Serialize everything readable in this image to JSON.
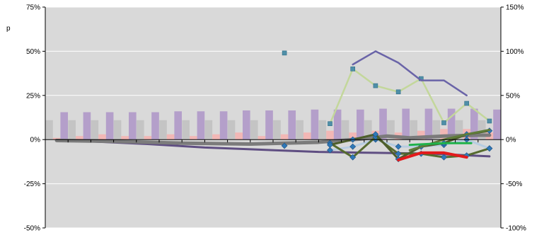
{
  "chart_data": {
    "type": "bar",
    "title": "",
    "xlabel": "",
    "ylabel": "",
    "side_label": "p",
    "grid": true,
    "legend": "none",
    "colors": {
      "plot_bg": "#d9d9d9",
      "grid": "#ffffff",
      "axis": "#000000"
    },
    "y_left": {
      "range": [
        -50,
        75
      ],
      "ticks": [
        -50,
        -25,
        0,
        25,
        50,
        75
      ],
      "tick_labels": [
        "-50%",
        "-25%",
        "0%",
        "25%",
        "50%",
        "75%"
      ]
    },
    "y_right": {
      "range": [
        -100,
        150
      ],
      "ticks": [
        -100,
        -50,
        0,
        50,
        100,
        150
      ],
      "tick_labels": [
        "-100%",
        "-50%",
        "0%",
        "50%",
        "100%",
        "150%"
      ]
    },
    "n_categories": 20,
    "bar_series": [
      {
        "color": "#c4c4c4",
        "values": [
          11,
          11,
          11,
          11,
          11,
          11,
          11,
          11,
          11,
          11,
          11,
          11,
          11,
          11,
          11,
          11,
          11,
          11,
          11,
          11
        ]
      },
      {
        "color": "#f2b7b5",
        "values": [
          1,
          2,
          3,
          2,
          2,
          3,
          2,
          3,
          4,
          2,
          3,
          4,
          5,
          4,
          5,
          4,
          5,
          6,
          6,
          4
        ]
      },
      {
        "color": "#b49fca",
        "values": [
          15.5,
          15.5,
          15.5,
          15.5,
          15.5,
          16,
          16,
          16,
          16.5,
          16.5,
          16.5,
          17,
          17,
          17,
          17.5,
          17.5,
          17.5,
          17.5,
          17.5,
          17
        ]
      }
    ],
    "line_series": [
      {
        "color": "#5f4e82",
        "width": 3,
        "axis": "left",
        "marker": "none",
        "points": [
          [
            0.5,
            -0.5
          ],
          [
            2,
            -1
          ],
          [
            4.5,
            -2.5
          ],
          [
            7,
            -4.5
          ],
          [
            9,
            -5.5
          ],
          [
            12,
            -7
          ],
          [
            14.5,
            -7.5
          ],
          [
            17,
            -8
          ],
          [
            19.5,
            -9.5
          ]
        ]
      },
      {
        "color": "#7b7b7b",
        "width": 5,
        "axis": "left",
        "marker": "none",
        "points": [
          [
            0.5,
            -0.5
          ],
          [
            3,
            -1
          ],
          [
            6,
            -2
          ],
          [
            9,
            -2.5
          ],
          [
            12,
            -1.5
          ],
          [
            14,
            0.5
          ],
          [
            15,
            2
          ],
          [
            16,
            1
          ],
          [
            17.5,
            2
          ],
          [
            19,
            2.5
          ],
          [
            19.5,
            2.5
          ]
        ]
      },
      {
        "color": "#c3d79b",
        "width": 2.5,
        "axis": "right",
        "marker": "square",
        "points": [
          [
            12.5,
            18
          ],
          [
            13.5,
            80
          ],
          [
            14.5,
            61
          ],
          [
            15.5,
            54
          ],
          [
            16.5,
            69
          ],
          [
            17.5,
            19
          ],
          [
            18.5,
            41
          ],
          [
            19.5,
            21
          ]
        ]
      },
      {
        "color": "#6a64a8",
        "width": 2.5,
        "axis": "right",
        "marker": "none",
        "points": [
          [
            13.5,
            85
          ],
          [
            14.5,
            100
          ],
          [
            15.5,
            87
          ],
          [
            16.5,
            67
          ],
          [
            17.5,
            67
          ],
          [
            18.5,
            50
          ]
        ]
      },
      {
        "color": "#4f7f98",
        "width": 0,
        "axis": "right",
        "marker": "square",
        "points": [
          [
            10.5,
            98
          ]
        ]
      },
      {
        "color": "#b7cde1",
        "width": 3,
        "axis": "left",
        "marker": "diamond",
        "points": [
          [
            12.5,
            -6
          ],
          [
            13.5,
            -4
          ],
          [
            14.5,
            0
          ],
          [
            15.5,
            -4
          ],
          [
            16.5,
            -4
          ],
          [
            17.5,
            -3
          ],
          [
            18.5,
            0
          ],
          [
            19.5,
            -5
          ]
        ]
      },
      {
        "color": "#566b2f",
        "width": 3,
        "axis": "left",
        "marker": "diamond",
        "points": [
          [
            12.5,
            -2
          ],
          [
            13.5,
            -10
          ],
          [
            14.5,
            1.5
          ],
          [
            15.5,
            -8
          ],
          [
            16.5,
            -8
          ],
          [
            17.5,
            -10
          ],
          [
            18.5,
            -9
          ],
          [
            19.5,
            -5
          ]
        ]
      },
      {
        "color": "#4e5e2c",
        "width": 3,
        "axis": "left",
        "marker": "diamond",
        "points": [
          [
            12.5,
            -3
          ],
          [
            13.5,
            0
          ],
          [
            14.5,
            3
          ],
          [
            15.5,
            -11
          ],
          [
            16.5,
            -4
          ],
          [
            17.5,
            -2
          ],
          [
            18.5,
            3
          ],
          [
            19.5,
            5
          ]
        ]
      },
      {
        "color": "#5f7c3a",
        "width": 3,
        "axis": "left",
        "marker": "none",
        "points": [
          [
            16,
            -6
          ],
          [
            17.5,
            0
          ],
          [
            18.5,
            3
          ],
          [
            19.5,
            5.5
          ]
        ]
      },
      {
        "color": "#e31a1c",
        "width": 4,
        "axis": "left",
        "marker": "none",
        "points": [
          [
            15.5,
            -11.5
          ],
          [
            16.5,
            -7.5
          ],
          [
            17.5,
            -7.5
          ],
          [
            18.5,
            -10
          ]
        ]
      },
      {
        "color": "#1fb24a",
        "width": 3,
        "axis": "left",
        "marker": "none",
        "points": [
          [
            16,
            -3
          ],
          [
            17.5,
            -2
          ],
          [
            18.7,
            -2
          ]
        ]
      },
      {
        "color": "#4f7f98",
        "width": 0,
        "axis": "left",
        "marker": "diamond",
        "points": [
          [
            10.5,
            -3.5
          ]
        ]
      }
    ]
  }
}
